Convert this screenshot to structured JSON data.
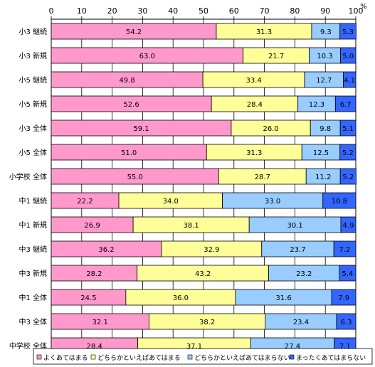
{
  "chart_data": {
    "type": "bar",
    "orientation": "horizontal",
    "stacked": true,
    "unit_label": "%",
    "xlim": [
      0,
      100
    ],
    "x_ticks": [
      "0",
      "10",
      "20",
      "30",
      "40",
      "50",
      "60",
      "70",
      "80",
      "90",
      "100"
    ],
    "grid": true,
    "legend_position": "bottom",
    "categories": [
      "小3 継続",
      "小3 新規",
      "小5 継続",
      "小5 新規",
      "小3 全体",
      "小5 全体",
      "小学校 全体",
      "中1 継続",
      "中1 新規",
      "中3 継続",
      "中3 新規",
      "中1 全体",
      "中3 全体",
      "中学校 全体"
    ],
    "series": [
      {
        "name": "よくあてはまる",
        "color": "#ff99cc",
        "values": [
          54.2,
          63.0,
          49.8,
          52.6,
          59.1,
          51.0,
          55.0,
          22.2,
          26.9,
          36.2,
          28.2,
          24.5,
          32.1,
          28.4
        ]
      },
      {
        "name": "どちらかといえばあてはまる",
        "color": "#ffff99",
        "values": [
          31.3,
          21.7,
          33.4,
          28.4,
          26.0,
          31.3,
          28.7,
          34.0,
          38.1,
          32.9,
          43.2,
          36.0,
          38.2,
          37.1
        ]
      },
      {
        "name": "どちらかといえばあてはまらない",
        "color": "#99ccff",
        "values": [
          9.3,
          10.3,
          12.7,
          12.3,
          9.8,
          12.5,
          11.2,
          33.0,
          30.1,
          23.7,
          23.2,
          31.6,
          23.4,
          27.4
        ]
      },
      {
        "name": "まったくあてはまらない",
        "color": "#3366ff",
        "values": [
          5.3,
          5.0,
          4.1,
          6.7,
          5.1,
          5.2,
          5.2,
          10.8,
          4.9,
          7.2,
          5.4,
          7.9,
          6.3,
          7.1
        ]
      }
    ],
    "value_labels": [
      [
        "54.2",
        "31.3",
        "9.3",
        "5.3"
      ],
      [
        "63.0",
        "21.7",
        "10.3",
        "5.0"
      ],
      [
        "49.8",
        "33.4",
        "12.7",
        "4.1"
      ],
      [
        "52.6",
        "28.4",
        "12.3",
        "6.7"
      ],
      [
        "59.1",
        "26.0",
        "9.8",
        "5.1"
      ],
      [
        "51.0",
        "31.3",
        "12.5",
        "5.2"
      ],
      [
        "55.0",
        "28.7",
        "11.2",
        "5.2"
      ],
      [
        "22.2",
        "34.0",
        "33.0",
        "10.8"
      ],
      [
        "26.9",
        "38.1",
        "30.1",
        "4.9"
      ],
      [
        "36.2",
        "32.9",
        "23.7",
        "7.2"
      ],
      [
        "28.2",
        "43.2",
        "23.2",
        "5.4"
      ],
      [
        "24.5",
        "36.0",
        "31.6",
        "7.9"
      ],
      [
        "32.1",
        "38.2",
        "23.4",
        "6.3"
      ],
      [
        "28.4",
        "37.1",
        "27.4",
        "7.1"
      ]
    ]
  }
}
